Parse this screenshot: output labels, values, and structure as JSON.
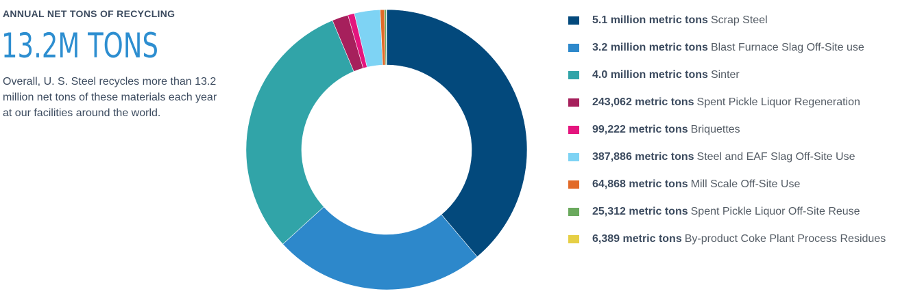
{
  "header": {
    "eyebrow": "ANNUAL NET TONS OF RECYCLING",
    "total": "13.2M TONS",
    "description": "Overall, U. S. Steel recycles more than 13.2 million net tons of these materials each year at our facilities around the world."
  },
  "chart_data": {
    "type": "donut",
    "unit": "metric tons",
    "legend_position": "right",
    "slices": [
      {
        "label": "Scrap Steel",
        "amount_text": "5.1 million metric tons",
        "value": 5100000,
        "color": "#03497c"
      },
      {
        "label": "Blast Furnace Slag Off-Site use",
        "amount_text": "3.2 million metric tons",
        "value": 3200000,
        "color": "#2d88cb"
      },
      {
        "label": "Sinter",
        "amount_text": "4.0 million metric tons",
        "value": 4000000,
        "color": "#31a4a8"
      },
      {
        "label": "Spent Pickle Liquor Regeneration",
        "amount_text": "243,062 metric tons",
        "value": 243062,
        "color": "#a6205c"
      },
      {
        "label": "Briquettes",
        "amount_text": "99,222 metric tons",
        "value": 99222,
        "color": "#e4157e"
      },
      {
        "label": "Steel and EAF Slag Off-Site Use",
        "amount_text": "387,886 metric tons",
        "value": 387886,
        "color": "#7ed3f4"
      },
      {
        "label": "Mill Scale Off-Site Use",
        "amount_text": "64,868 metric tons",
        "value": 64868,
        "color": "#e26a28"
      },
      {
        "label": "Spent Pickle Liquor Off-Site Reuse",
        "amount_text": "25,312 metric tons",
        "value": 25312,
        "color": "#6aa95d"
      },
      {
        "label": "By-product Coke Plant Process Residues",
        "amount_text": "6,389 metric tons",
        "value": 6389,
        "color": "#e6cf45"
      }
    ]
  }
}
